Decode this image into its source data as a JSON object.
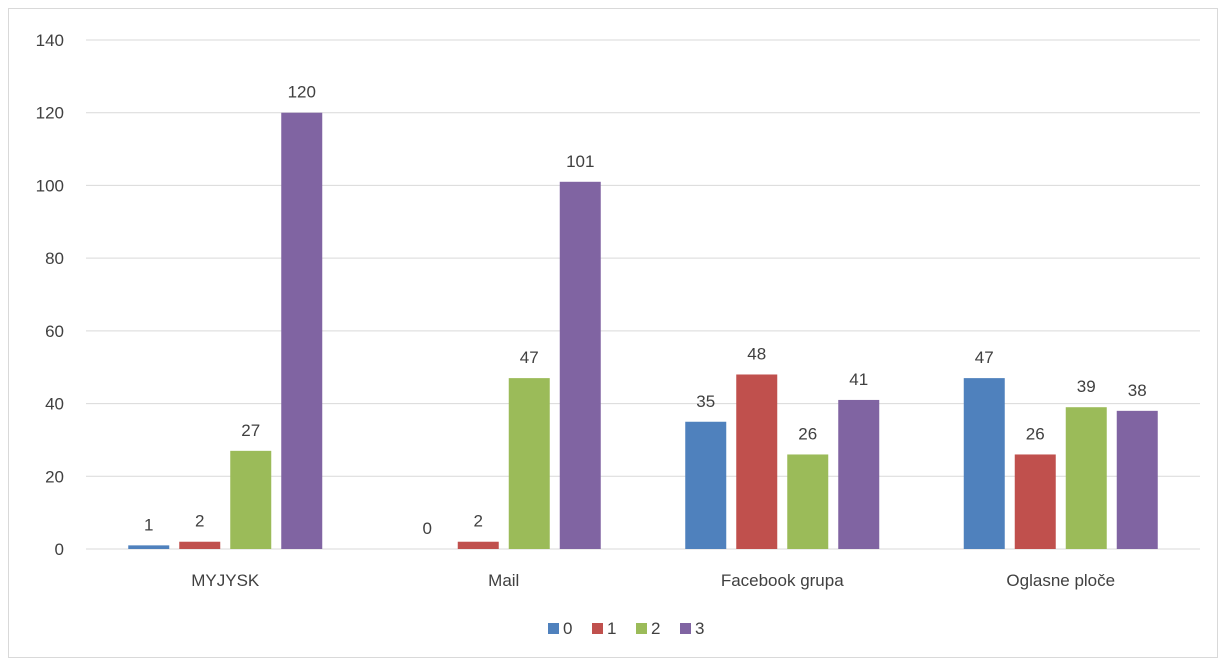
{
  "chart_data": {
    "type": "bar",
    "categories": [
      "MYJYSK",
      "Mail",
      "Facebook grupa",
      "Oglasne ploče"
    ],
    "series": [
      {
        "name": "0",
        "color": "#4f81bd",
        "values": [
          1,
          0,
          35,
          47
        ]
      },
      {
        "name": "1",
        "color": "#c0504d",
        "values": [
          2,
          2,
          48,
          26
        ]
      },
      {
        "name": "2",
        "color": "#9bbb59",
        "values": [
          27,
          47,
          26,
          39
        ]
      },
      {
        "name": "3",
        "color": "#8064a2",
        "values": [
          120,
          101,
          41,
          38
        ]
      }
    ],
    "ylim": [
      0,
      140
    ],
    "yticks": [
      0,
      20,
      40,
      60,
      80,
      100,
      120,
      140
    ],
    "grid": true,
    "legend_position": "bottom",
    "data_labels": true
  }
}
